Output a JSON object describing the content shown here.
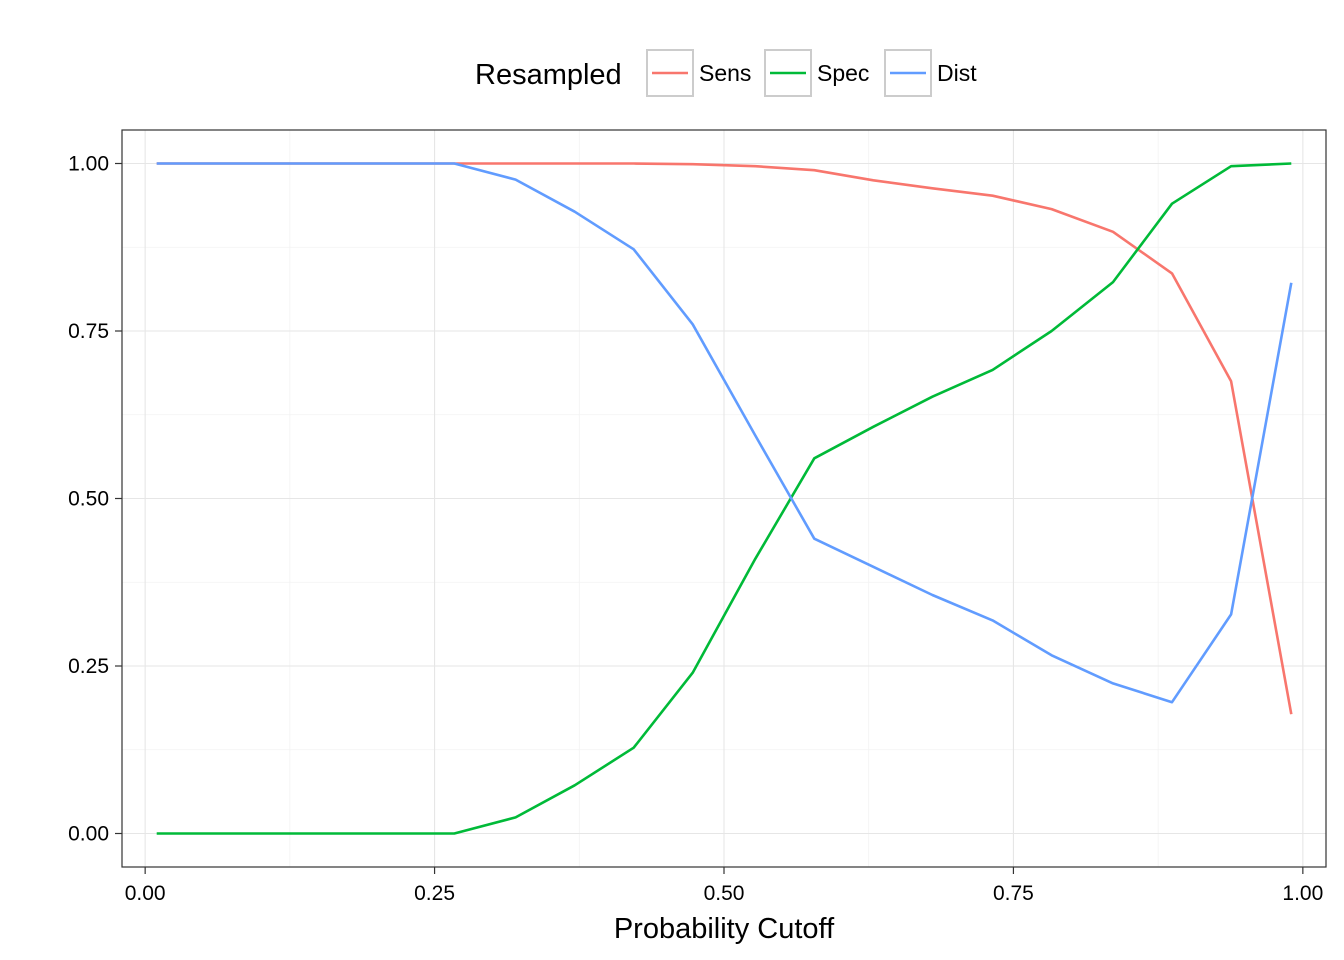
{
  "chart_data": {
    "type": "line",
    "title": "",
    "xlabel": "Probability Cutoff",
    "ylabel": "",
    "xlim": [
      -0.02,
      1.02
    ],
    "ylim": [
      -0.05,
      1.05
    ],
    "x_ticks": [
      0,
      0.25,
      0.5,
      0.75,
      1
    ],
    "x_tick_labels": [
      "0.00",
      "0.25",
      "0.50",
      "0.75",
      "1.00"
    ],
    "y_ticks": [
      0,
      0.25,
      0.5,
      0.75,
      1
    ],
    "y_tick_labels": [
      "0.00",
      "0.25",
      "0.50",
      "0.75",
      "1.00"
    ],
    "grid": true,
    "legend": {
      "title": "Resampled",
      "position": "top"
    },
    "x": [
      0.01,
      0.06,
      0.111,
      0.161,
      0.212,
      0.267,
      0.32,
      0.371,
      0.422,
      0.473,
      0.527,
      0.578,
      0.629,
      0.68,
      0.732,
      0.783,
      0.836,
      0.887,
      0.938,
      0.99
    ],
    "series": [
      {
        "name": "Sens",
        "color": "#F8766D",
        "values": [
          1.0,
          1.0,
          1.0,
          1.0,
          1.0,
          1.0,
          1.0,
          1.0,
          1.0,
          0.999,
          0.996,
          0.99,
          0.975,
          0.963,
          0.952,
          0.932,
          0.898,
          0.836,
          0.675,
          0.178
        ]
      },
      {
        "name": "Spec",
        "color": "#00BA38",
        "values": [
          0.0,
          0.0,
          0.0,
          0.0,
          0.0,
          0.0,
          0.024,
          0.072,
          0.128,
          0.24,
          0.41,
          0.56,
          0.607,
          0.652,
          0.692,
          0.75,
          0.823,
          0.94,
          0.996,
          1.0
        ]
      },
      {
        "name": "Dist",
        "color": "#619CFF",
        "values": [
          1.0,
          1.0,
          1.0,
          1.0,
          1.0,
          1.0,
          0.976,
          0.928,
          0.872,
          0.76,
          0.594,
          0.44,
          0.398,
          0.356,
          0.318,
          0.266,
          0.224,
          0.196,
          0.327,
          0.822
        ]
      }
    ]
  }
}
